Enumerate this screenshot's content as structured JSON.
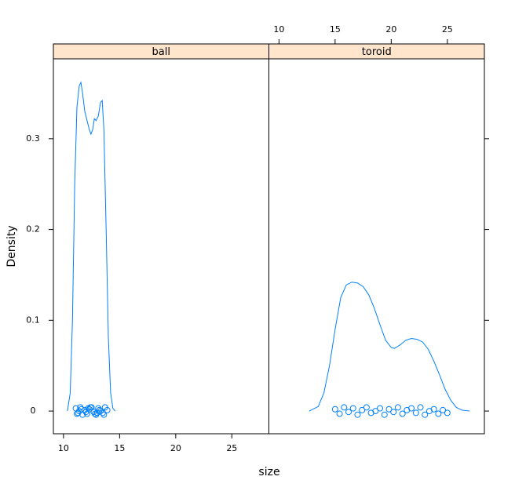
{
  "chart_data": {
    "type": "line",
    "xlabel": "size",
    "ylabel": "Density",
    "xlim": [
      9.1,
      28.3
    ],
    "ylim": [
      -0.025,
      0.388
    ],
    "xticks": [
      10,
      15,
      20,
      25
    ],
    "yticks": [
      0.0,
      0.1,
      0.2,
      0.3
    ],
    "color": "#0080ff",
    "strip_color": "#ffe5cc",
    "panels": [
      {
        "strip": "ball",
        "series": [
          {
            "x": [
              10.35,
              10.6,
              10.8,
              11.0,
              11.2,
              11.4,
              11.55,
              11.7,
              11.9,
              12.1,
              12.3,
              12.45,
              12.6,
              12.75,
              12.9,
              13.1,
              13.3,
              13.45,
              13.6,
              13.8,
              14.0,
              14.2,
              14.4,
              14.6
            ],
            "values": [
              0,
              0.02,
              0.1,
              0.25,
              0.335,
              0.358,
              0.362,
              0.35,
              0.33,
              0.32,
              0.31,
              0.305,
              0.31,
              0.322,
              0.32,
              0.325,
              0.34,
              0.342,
              0.31,
              0.2,
              0.08,
              0.02,
              0.003,
              0
            ]
          }
        ],
        "points": {
          "x": [
            11.1,
            11.3,
            11.5,
            11.7,
            11.9,
            12.1,
            12.3,
            12.5,
            12.7,
            12.9,
            13.1,
            13.3,
            13.5,
            13.7,
            13.9,
            11.2,
            11.6,
            12.0,
            12.4,
            12.8,
            13.2,
            13.6,
            11.4,
            12.2,
            13.0
          ],
          "values": [
            0.003,
            -0.002,
            0.004,
            -0.004,
            0.001,
            -0.003,
            0.002,
            0.004,
            -0.001,
            -0.004,
            0.003,
            0.0,
            -0.002,
            0.004,
            0.001,
            -0.003,
            0.002,
            -0.001,
            0.004,
            -0.003,
            0.001,
            -0.004,
            0.0,
            0.003,
            -0.002
          ]
        }
      },
      {
        "strip": "toroid",
        "series": [
          {
            "x": [
              12.7,
              13.5,
              14.0,
              14.5,
              15.0,
              15.5,
              16.0,
              16.5,
              17.0,
              17.5,
              18.0,
              18.5,
              19.0,
              19.5,
              20.0,
              20.3,
              20.8,
              21.3,
              21.8,
              22.3,
              22.8,
              23.3,
              23.8,
              24.3,
              24.8,
              25.3,
              25.8,
              26.3,
              27.0
            ],
            "values": [
              0,
              0.005,
              0.02,
              0.05,
              0.09,
              0.125,
              0.139,
              0.142,
              0.141,
              0.137,
              0.128,
              0.113,
              0.095,
              0.078,
              0.07,
              0.069,
              0.073,
              0.078,
              0.08,
              0.079,
              0.076,
              0.068,
              0.055,
              0.04,
              0.024,
              0.012,
              0.004,
              0.001,
              0
            ]
          }
        ],
        "points": {
          "x": [
            15.0,
            15.4,
            15.8,
            16.2,
            16.6,
            17.0,
            17.4,
            17.8,
            18.2,
            18.6,
            19.0,
            19.4,
            19.8,
            20.2,
            20.6,
            21.0,
            21.4,
            21.8,
            22.2,
            22.6,
            23.0,
            23.4,
            23.8,
            24.2,
            24.6,
            25.0
          ],
          "values": [
            0.002,
            -0.003,
            0.004,
            -0.001,
            0.003,
            -0.004,
            0.001,
            0.004,
            -0.002,
            0.0,
            0.003,
            -0.004,
            0.002,
            -0.001,
            0.004,
            -0.003,
            0.001,
            0.003,
            -0.002,
            0.004,
            -0.004,
            0.0,
            0.002,
            -0.003,
            0.001,
            -0.002
          ]
        }
      }
    ]
  }
}
